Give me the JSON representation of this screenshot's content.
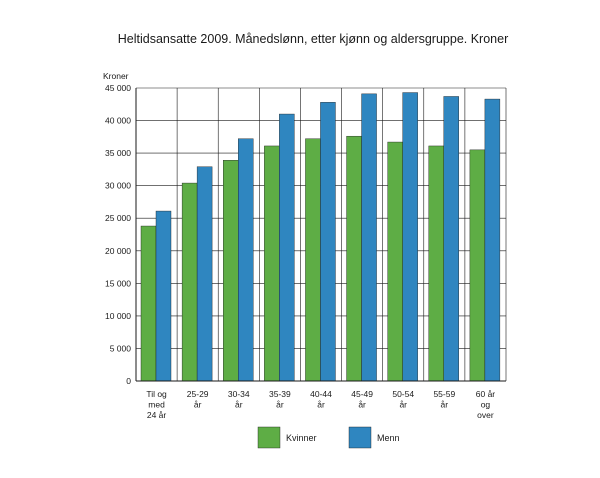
{
  "chart_data": {
    "type": "bar",
    "title": "Heltidsansatte 2009. Månedslønn, etter kjønn og aldersgruppe. Kroner",
    "ylabel": "Kroner",
    "xlabel": "",
    "ylim": [
      0,
      45000
    ],
    "yticks": [
      0,
      5000,
      10000,
      15000,
      20000,
      25000,
      30000,
      35000,
      40000,
      45000
    ],
    "ytick_labels": [
      "0",
      "5 000",
      "10 000",
      "15 000",
      "20 000",
      "25 000",
      "30 000",
      "35 000",
      "40 000",
      "45 000"
    ],
    "grid": true,
    "legend_position": "bottom",
    "categories": [
      [
        "Til og",
        "med",
        "24 år"
      ],
      [
        "25-29",
        "år"
      ],
      [
        "30-34",
        "år"
      ],
      [
        "35-39",
        "år"
      ],
      [
        "40-44",
        "år"
      ],
      [
        "45-49",
        "år"
      ],
      [
        "50-54",
        "år"
      ],
      [
        "55-59",
        "år"
      ],
      [
        "60 år",
        "og",
        "over"
      ]
    ],
    "series": [
      {
        "name": "Kvinner",
        "color": "#5ead45",
        "values": [
          23800,
          30400,
          33900,
          36100,
          37200,
          37600,
          36700,
          36100,
          35500
        ]
      },
      {
        "name": "Menn",
        "color": "#2f86c0",
        "values": [
          26100,
          32900,
          37200,
          41000,
          42800,
          44100,
          44300,
          43700,
          43300
        ]
      }
    ]
  }
}
